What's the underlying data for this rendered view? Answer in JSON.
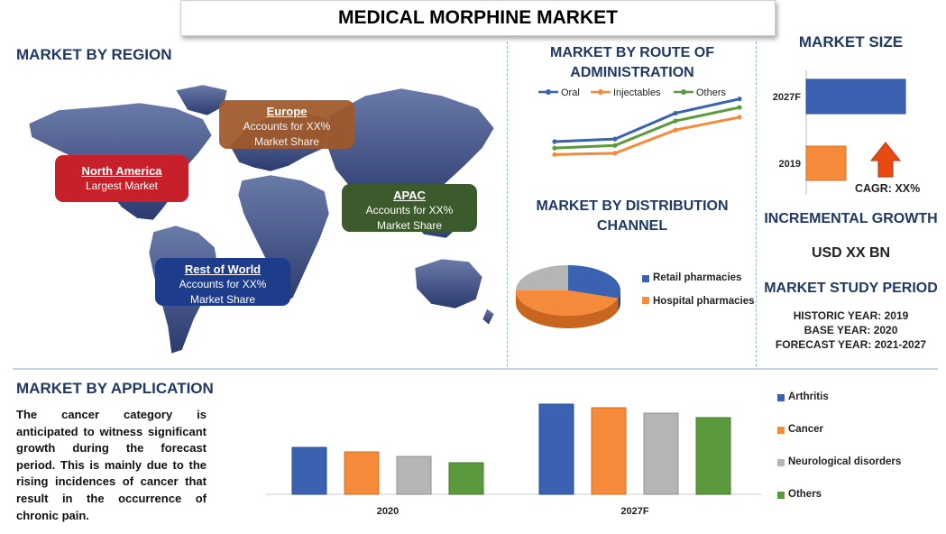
{
  "title": "MEDICAL MORPHINE MARKET",
  "region": {
    "heading": "MARKET BY REGION",
    "boxes": [
      {
        "name": "North America",
        "line1": "Largest Market",
        "line2": "",
        "color": "#c8202b"
      },
      {
        "name": "Europe",
        "line1": "Accounts for XX%",
        "line2": "Market Share",
        "color": "#a0582a"
      },
      {
        "name": "APAC",
        "line1": "Accounts for XX%",
        "line2": "Market Share",
        "color": "#3c5a2c"
      },
      {
        "name": "Rest of World",
        "line1": "Accounts for XX%",
        "line2": "Market Share",
        "color": "#1e3c8c"
      }
    ]
  },
  "route": {
    "heading_line1": "MARKET BY ROUTE OF",
    "heading_line2": "ADMINISTRATION"
  },
  "distribution": {
    "heading_line1": "MARKET BY DISTRIBUTION",
    "heading_line2": "CHANNEL"
  },
  "market_size": {
    "heading": "MARKET SIZE",
    "cagr": "CAGR: XX%"
  },
  "incremental": {
    "heading": "INCREMENTAL GROWTH",
    "value": "USD XX BN"
  },
  "study_period": {
    "heading": "MARKET STUDY PERIOD",
    "historic": "HISTORIC YEAR: 2019",
    "base": "BASE YEAR: 2020",
    "forecast": "FORECAST YEAR: 2021-2027"
  },
  "application": {
    "heading": "MARKET BY APPLICATION",
    "text": "The cancer category is anticipated to witness significant growth during the forecast period. This is mainly due to the rising incidences of cancer that result in the occurrence of chronic pain."
  },
  "colors": {
    "blue": "#3a62b0",
    "orange": "#f58a3b",
    "gray": "#b5b5b5",
    "green": "#5a9a3c",
    "heading": "#1f3864"
  },
  "chart_data": [
    {
      "type": "line",
      "x": [
        "",
        "",
        ""
      ],
      "series": [
        {
          "name": "Oral",
          "values": [
            3.0,
            3.2,
            5.2
          ]
        },
        {
          "name": "Injectables",
          "values": [
            2.0,
            2.1,
            3.9
          ]
        },
        {
          "name": "Others",
          "values": [
            2.5,
            2.7,
            4.6
          ]
        }
      ],
      "legend": "top",
      "grid": false
    },
    {
      "type": "pie",
      "labels": [
        "Retail pharmacies",
        "Hospital pharmacies",
        ""
      ],
      "values": [
        30,
        45,
        25
      ],
      "legend": "right"
    },
    {
      "type": "bar",
      "orientation": "horizontal",
      "categories": [
        "2027F",
        "2019"
      ],
      "values": [
        100,
        40
      ],
      "annotation": "CAGR: XX%"
    },
    {
      "type": "bar",
      "categories": [
        "2020",
        "2027F"
      ],
      "series": [
        {
          "name": "Arthritis",
          "values": [
            52,
            100
          ]
        },
        {
          "name": "Cancer",
          "values": [
            47,
            96
          ]
        },
        {
          "name": "Neurological disorders",
          "values": [
            42,
            90
          ]
        },
        {
          "name": "Others",
          "values": [
            35,
            85
          ]
        }
      ],
      "legend": "right",
      "grid": false
    }
  ]
}
